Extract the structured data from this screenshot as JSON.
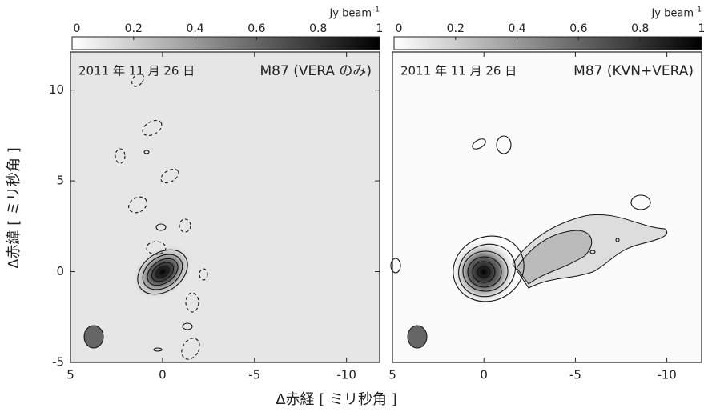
{
  "figure": {
    "xlabel": "Δ赤経 [ ミリ秒角 ]",
    "ylabel": "Δ赤緯 [ ミリ秒角 ]"
  },
  "chart_data": [
    {
      "type": "image",
      "date": "2011 年 11 月 26 日",
      "title": "M87 (VERA のみ)",
      "xlim": [
        5,
        -11.8
      ],
      "xticks": [
        5,
        0,
        -5,
        -10
      ],
      "ylim": [
        -5,
        12.1
      ],
      "yticks": [
        -5,
        0,
        5,
        10
      ],
      "colorbar_label": "Jy beam",
      "colorbar_label_sup": "-1",
      "clim": [
        0,
        1
      ],
      "cticks": [
        0,
        0.2,
        0.4,
        0.6,
        0.8,
        1
      ]
    },
    {
      "type": "image",
      "date": "2011 年 11 月 26 日",
      "title": "M87 (KVN+VERA)",
      "xlim": [
        5,
        -11.9
      ],
      "xticks": [
        5,
        0,
        -5,
        -10
      ],
      "ylim": [
        -5,
        12.1
      ],
      "colorbar_label": "Jy beam",
      "colorbar_label_sup": "-1",
      "clim": [
        0,
        1
      ],
      "cticks": [
        0,
        0.2,
        0.4,
        0.6,
        0.8,
        1
      ]
    }
  ]
}
